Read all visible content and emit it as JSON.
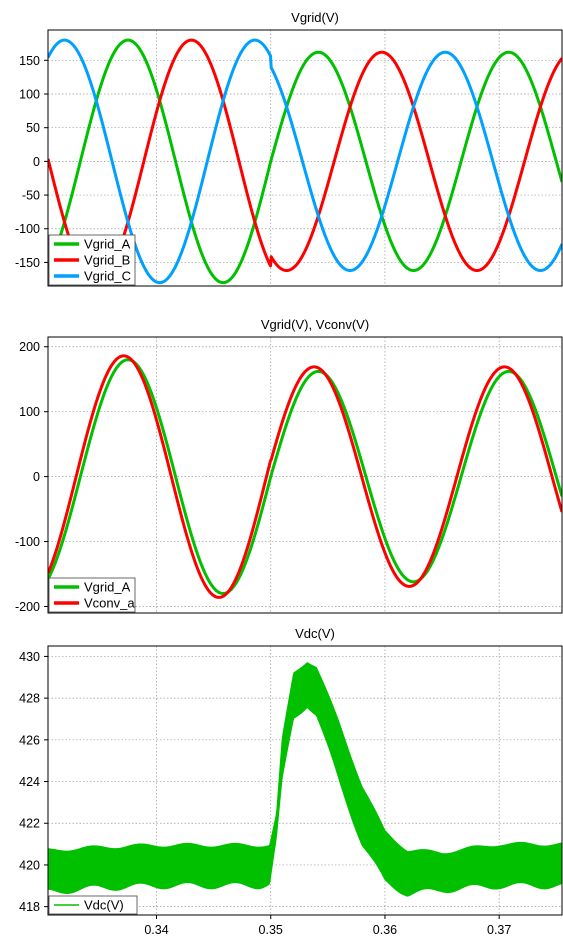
{
  "chart_data": [
    {
      "type": "line",
      "title": "Vgrid(V)",
      "xlim": [
        0.3305,
        0.3755
      ],
      "ylim": [
        -185,
        195
      ],
      "yticks": [
        150,
        100,
        50,
        0,
        -50,
        -100,
        -150
      ],
      "ytick_labels": [
        "150",
        "100",
        "50",
        "0",
        "-50",
        "-100",
        "-150"
      ],
      "grid": true,
      "legend": "bottom-left",
      "series": [
        {
          "name": "Vgrid_A",
          "color": "#00c000",
          "waveform": "sine",
          "frequency_hz": 60,
          "phase_deg": 0,
          "amplitude_before": 180,
          "amplitude_after": 162,
          "step_time": 0.35
        },
        {
          "name": "Vgrid_B",
          "color": "#ff0000",
          "waveform": "sine",
          "frequency_hz": 60,
          "phase_deg": -120,
          "amplitude_before": 180,
          "amplitude_after": 162,
          "step_time": 0.35
        },
        {
          "name": "Vgrid_C",
          "color": "#00a0ff",
          "waveform": "sine",
          "frequency_hz": 60,
          "phase_deg": 120,
          "amplitude_before": 180,
          "amplitude_after": 162,
          "step_time": 0.35
        }
      ]
    },
    {
      "type": "line",
      "title": "Vgrid(V), Vconv(V)",
      "xlim": [
        0.3305,
        0.3755
      ],
      "ylim": [
        -210,
        215
      ],
      "yticks": [
        200,
        100,
        0,
        -100,
        -200
      ],
      "ytick_labels": [
        "200",
        "100",
        "0",
        "-100",
        "-200"
      ],
      "grid": true,
      "legend": "bottom-left",
      "series": [
        {
          "name": "Vgrid_A",
          "color": "#00c000",
          "waveform": "sine",
          "frequency_hz": 60,
          "phase_deg": 0,
          "amplitude_before": 180,
          "amplitude_after": 162,
          "step_time": 0.35
        },
        {
          "name": "Vconv_a",
          "color": "#ff0000",
          "waveform": "sine",
          "frequency_hz": 60,
          "phase_deg": 8,
          "amplitude_before": 186,
          "amplitude_after": 169,
          "step_time": 0.35
        }
      ]
    },
    {
      "type": "area",
      "title": "Vdc(V)",
      "xlim": [
        0.3305,
        0.3755
      ],
      "ylim": [
        417.6,
        430.5
      ],
      "x": [
        0.3305,
        0.335,
        0.34,
        0.345,
        0.349,
        0.3499,
        0.3505,
        0.351,
        0.352,
        0.3532,
        0.354,
        0.356,
        0.358,
        0.36,
        0.362,
        0.365,
        0.37,
        0.3755
      ],
      "upper": [
        420.7,
        420.85,
        420.95,
        420.95,
        420.95,
        420.95,
        422.4,
        426.0,
        429.2,
        429.8,
        429.5,
        426.8,
        423.8,
        421.6,
        420.7,
        420.6,
        421.0,
        421.0
      ],
      "lower": [
        418.7,
        418.9,
        419.0,
        419.0,
        419.0,
        419.1,
        421.2,
        424.0,
        427.0,
        427.7,
        427.2,
        424.0,
        421.0,
        419.2,
        418.6,
        418.8,
        419.0,
        419.0
      ],
      "yticks": [
        430,
        428,
        426,
        424,
        422,
        420,
        418
      ],
      "ytick_labels": [
        "430",
        "428",
        "426",
        "424",
        "422",
        "420",
        "418"
      ],
      "xticks": [
        0.34,
        0.35,
        0.36,
        0.37
      ],
      "xtick_labels": [
        "0.34",
        "0.35",
        "0.36",
        "0.37"
      ],
      "grid": true,
      "legend": "bottom-left",
      "series": [
        {
          "name": "Vdc(V)",
          "color": "#00c000"
        }
      ]
    }
  ]
}
